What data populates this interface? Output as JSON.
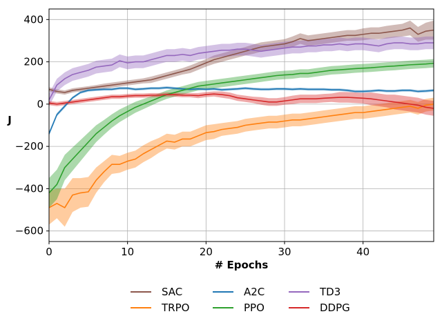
{
  "chart_data": {
    "type": "line",
    "title": "",
    "xlabel": "# Epochs",
    "ylabel": "J",
    "xlim": [
      0,
      49
    ],
    "ylim": [
      -650,
      450
    ],
    "xticks": [
      0,
      10,
      20,
      30,
      40
    ],
    "yticks": [
      -600,
      -400,
      -200,
      0,
      200,
      400
    ],
    "grid": true,
    "legend_position": "bottom-center",
    "x": [
      0,
      1,
      2,
      3,
      4,
      5,
      6,
      7,
      8,
      9,
      10,
      11,
      12,
      13,
      14,
      15,
      16,
      17,
      18,
      19,
      20,
      21,
      22,
      23,
      24,
      25,
      26,
      27,
      28,
      29,
      30,
      31,
      32,
      33,
      34,
      35,
      36,
      37,
      38,
      39,
      40,
      41,
      42,
      43,
      44,
      45,
      46,
      47,
      48,
      49
    ],
    "series": [
      {
        "name": "SAC",
        "color": "#8c564b",
        "band_color": "#8c564b",
        "values": [
          70,
          60,
          55,
          65,
          70,
          75,
          80,
          85,
          90,
          95,
          100,
          105,
          110,
          115,
          125,
          135,
          145,
          155,
          165,
          180,
          195,
          210,
          220,
          230,
          240,
          250,
          260,
          270,
          275,
          280,
          285,
          295,
          310,
          300,
          305,
          310,
          315,
          320,
          325,
          325,
          330,
          335,
          335,
          340,
          345,
          350,
          360,
          330,
          345,
          350
        ],
        "band": [
          10,
          10,
          10,
          10,
          10,
          10,
          10,
          12,
          12,
          12,
          12,
          12,
          12,
          15,
          15,
          15,
          15,
          15,
          18,
          18,
          18,
          20,
          20,
          20,
          20,
          20,
          22,
          22,
          22,
          22,
          22,
          25,
          25,
          25,
          25,
          25,
          25,
          25,
          25,
          25,
          28,
          28,
          28,
          30,
          30,
          30,
          35,
          35,
          40,
          45
        ]
      },
      {
        "name": "TRPO",
        "color": "#ff7f0e",
        "band_color": "#ff7f0e",
        "values": [
          -490,
          -470,
          -490,
          -430,
          -420,
          -415,
          -360,
          -320,
          -285,
          -285,
          -270,
          -260,
          -235,
          -215,
          -195,
          -175,
          -180,
          -165,
          -165,
          -150,
          -135,
          -130,
          -120,
          -115,
          -110,
          -100,
          -95,
          -90,
          -85,
          -85,
          -80,
          -75,
          -75,
          -70,
          -65,
          -60,
          -55,
          -50,
          -45,
          -40,
          -40,
          -35,
          -30,
          -25,
          -20,
          -15,
          -10,
          -20,
          -5,
          0
        ],
        "band": [
          80,
          70,
          90,
          80,
          70,
          70,
          60,
          50,
          45,
          40,
          40,
          40,
          40,
          40,
          35,
          35,
          35,
          35,
          35,
          35,
          35,
          35,
          30,
          30,
          30,
          30,
          30,
          30,
          30,
          30,
          30,
          30,
          30,
          30,
          30,
          30,
          30,
          30,
          30,
          30,
          30,
          30,
          30,
          30,
          30,
          30,
          30,
          30,
          30,
          30
        ]
      },
      {
        "name": "A2C",
        "color": "#1f77b4",
        "band_color": "#1f77b4",
        "values": [
          -140,
          -50,
          -10,
          30,
          55,
          65,
          68,
          70,
          70,
          75,
          75,
          70,
          72,
          75,
          75,
          78,
          75,
          72,
          70,
          72,
          70,
          72,
          68,
          70,
          72,
          75,
          72,
          70,
          70,
          72,
          72,
          70,
          72,
          70,
          70,
          70,
          68,
          68,
          65,
          60,
          60,
          62,
          65,
          62,
          62,
          65,
          65,
          60,
          62,
          65
        ],
        "band": [
          10,
          8,
          8,
          6,
          6,
          6,
          6,
          6,
          6,
          6,
          6,
          6,
          6,
          6,
          6,
          6,
          6,
          6,
          6,
          6,
          6,
          6,
          6,
          6,
          6,
          6,
          6,
          6,
          6,
          6,
          6,
          6,
          6,
          6,
          6,
          6,
          6,
          6,
          6,
          6,
          6,
          6,
          6,
          6,
          6,
          6,
          6,
          6,
          6,
          6
        ]
      },
      {
        "name": "PPO",
        "color": "#2ca02c",
        "band_color": "#2ca02c",
        "values": [
          -420,
          -380,
          -300,
          -260,
          -220,
          -180,
          -140,
          -110,
          -80,
          -55,
          -35,
          -15,
          0,
          15,
          30,
          45,
          55,
          65,
          75,
          85,
          90,
          95,
          100,
          105,
          110,
          115,
          120,
          125,
          130,
          135,
          138,
          140,
          145,
          145,
          150,
          155,
          160,
          162,
          165,
          168,
          170,
          172,
          175,
          178,
          180,
          183,
          186,
          188,
          190,
          193
        ],
        "band": [
          70,
          70,
          60,
          55,
          50,
          45,
          40,
          35,
          32,
          30,
          28,
          26,
          24,
          22,
          20,
          20,
          20,
          20,
          20,
          20,
          20,
          20,
          20,
          20,
          20,
          20,
          20,
          20,
          20,
          20,
          20,
          20,
          20,
          20,
          20,
          20,
          20,
          20,
          20,
          20,
          20,
          20,
          20,
          20,
          20,
          20,
          20,
          20,
          20,
          20
        ]
      },
      {
        "name": "TD3",
        "color": "#9467bd",
        "band_color": "#9467bd",
        "values": [
          20,
          90,
          120,
          140,
          150,
          160,
          175,
          180,
          185,
          205,
          195,
          200,
          200,
          210,
          220,
          230,
          230,
          235,
          230,
          240,
          245,
          250,
          255,
          255,
          260,
          260,
          255,
          250,
          255,
          260,
          265,
          270,
          270,
          275,
          275,
          280,
          280,
          285,
          280,
          285,
          285,
          280,
          275,
          285,
          290,
          290,
          285,
          285,
          290,
          290
        ],
        "band": [
          30,
          30,
          30,
          30,
          30,
          30,
          30,
          30,
          30,
          30,
          30,
          30,
          30,
          30,
          30,
          30,
          30,
          30,
          30,
          30,
          30,
          30,
          30,
          30,
          30,
          30,
          30,
          30,
          30,
          30,
          30,
          30,
          30,
          30,
          30,
          30,
          30,
          30,
          30,
          30,
          30,
          30,
          30,
          30,
          30,
          30,
          30,
          30,
          30,
          30
        ]
      },
      {
        "name": "DDPG",
        "color": "#d62728",
        "band_color": "#d62728",
        "values": [
          5,
          0,
          5,
          10,
          15,
          20,
          25,
          30,
          35,
          35,
          38,
          40,
          40,
          42,
          42,
          45,
          45,
          42,
          42,
          40,
          45,
          48,
          45,
          40,
          30,
          25,
          20,
          15,
          10,
          10,
          15,
          20,
          25,
          25,
          25,
          28,
          30,
          32,
          32,
          30,
          28,
          25,
          20,
          15,
          10,
          5,
          0,
          -5,
          -15,
          -20
        ],
        "band": [
          10,
          10,
          10,
          10,
          10,
          10,
          10,
          10,
          10,
          10,
          10,
          10,
          10,
          10,
          10,
          10,
          10,
          10,
          10,
          12,
          12,
          12,
          15,
          15,
          15,
          15,
          15,
          18,
          18,
          18,
          18,
          20,
          20,
          20,
          20,
          20,
          20,
          25,
          25,
          25,
          25,
          30,
          30,
          30,
          35,
          35,
          35,
          35,
          35,
          35
        ]
      }
    ]
  }
}
